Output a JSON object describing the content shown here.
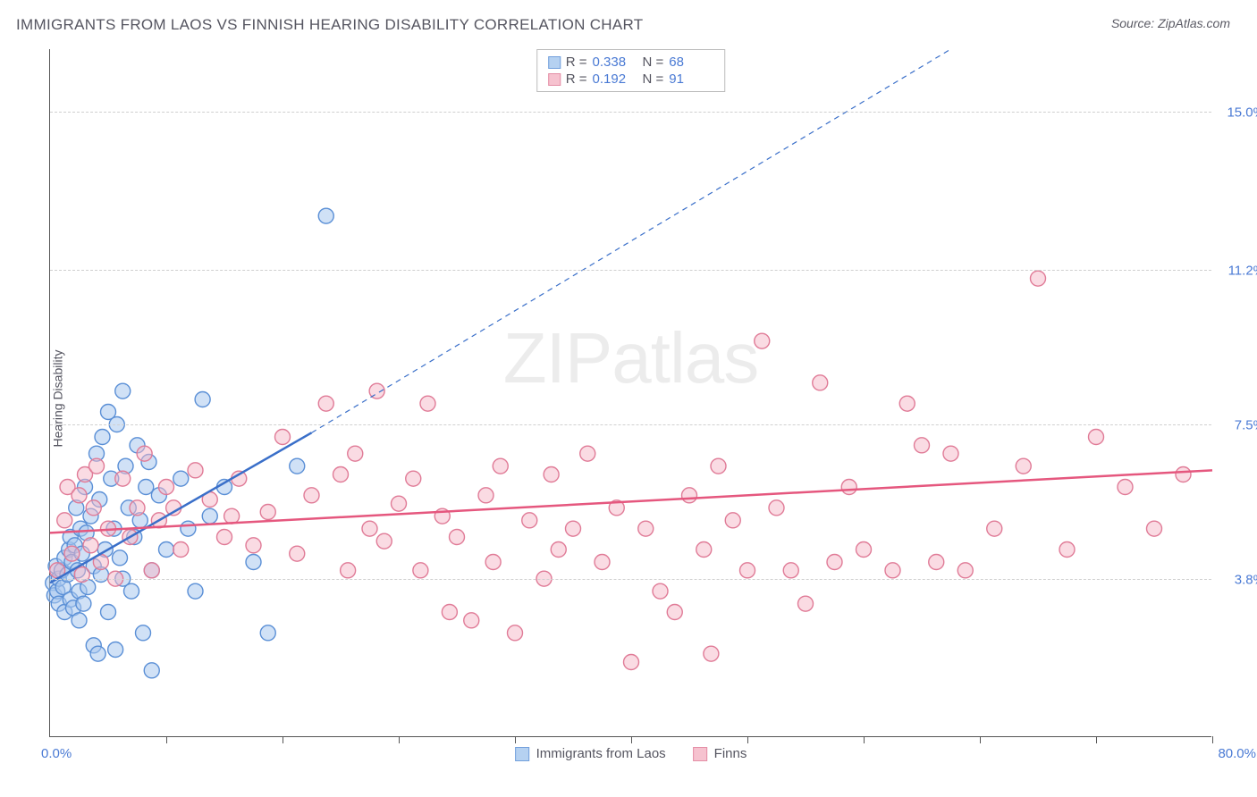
{
  "title": "IMMIGRANTS FROM LAOS VS FINNISH HEARING DISABILITY CORRELATION CHART",
  "source_label": "Source: ZipAtlas.com",
  "y_axis_label": "Hearing Disability",
  "watermark_bold": "ZIP",
  "watermark_light": "atlas",
  "chart": {
    "type": "scatter",
    "xlim": [
      0,
      80
    ],
    "ylim": [
      0,
      16.5
    ],
    "x_min_label": "0.0%",
    "x_max_label": "80.0%",
    "y_ticks": [
      {
        "v": 3.8,
        "label": "3.8%"
      },
      {
        "v": 7.5,
        "label": "7.5%"
      },
      {
        "v": 11.2,
        "label": "11.2%"
      },
      {
        "v": 15.0,
        "label": "15.0%"
      }
    ],
    "x_ticks": [
      8,
      16,
      24,
      32,
      40,
      48,
      56,
      64,
      72,
      80
    ],
    "marker_radius": 8.5,
    "marker_stroke_width": 1.4,
    "background_color": "#ffffff",
    "grid_color": "#d0d0d0",
    "series": [
      {
        "key": "laos",
        "label": "Immigrants from Laos",
        "fill": "#a9c9ef",
        "stroke": "#5a8fd6",
        "fill_opacity": 0.55,
        "trend": {
          "x1": 0,
          "y1": 3.7,
          "x2": 18,
          "y2": 7.3,
          "dash_x2": 62,
          "dash_y2": 16.5,
          "stroke": "#3a6fc9",
          "width": 2.5
        },
        "R": "0.338",
        "N": "68",
        "points": [
          [
            0.2,
            3.7
          ],
          [
            0.3,
            3.4
          ],
          [
            0.4,
            4.1
          ],
          [
            0.5,
            3.5
          ],
          [
            0.6,
            3.2
          ],
          [
            0.6,
            3.8
          ],
          [
            0.8,
            4.0
          ],
          [
            0.9,
            3.6
          ],
          [
            1.0,
            4.3
          ],
          [
            1.0,
            3.0
          ],
          [
            1.2,
            3.9
          ],
          [
            1.3,
            4.5
          ],
          [
            1.4,
            4.8
          ],
          [
            1.4,
            3.3
          ],
          [
            1.5,
            4.2
          ],
          [
            1.6,
            3.1
          ],
          [
            1.7,
            4.6
          ],
          [
            1.8,
            5.5
          ],
          [
            1.9,
            4.0
          ],
          [
            2.0,
            3.5
          ],
          [
            2.0,
            2.8
          ],
          [
            2.1,
            5.0
          ],
          [
            2.2,
            4.4
          ],
          [
            2.3,
            3.2
          ],
          [
            2.4,
            6.0
          ],
          [
            2.5,
            4.9
          ],
          [
            2.6,
            3.6
          ],
          [
            2.8,
            5.3
          ],
          [
            3.0,
            4.1
          ],
          [
            3.0,
            2.2
          ],
          [
            3.2,
            6.8
          ],
          [
            3.3,
            2.0
          ],
          [
            3.4,
            5.7
          ],
          [
            3.5,
            3.9
          ],
          [
            3.6,
            7.2
          ],
          [
            3.8,
            4.5
          ],
          [
            4.0,
            7.8
          ],
          [
            4.0,
            3.0
          ],
          [
            4.2,
            6.2
          ],
          [
            4.4,
            5.0
          ],
          [
            4.5,
            2.1
          ],
          [
            4.6,
            7.5
          ],
          [
            4.8,
            4.3
          ],
          [
            5.0,
            8.3
          ],
          [
            5.0,
            3.8
          ],
          [
            5.2,
            6.5
          ],
          [
            5.4,
            5.5
          ],
          [
            5.6,
            3.5
          ],
          [
            5.8,
            4.8
          ],
          [
            6.0,
            7.0
          ],
          [
            6.2,
            5.2
          ],
          [
            6.4,
            2.5
          ],
          [
            6.6,
            6.0
          ],
          [
            6.8,
            6.6
          ],
          [
            7.0,
            4.0
          ],
          [
            7.0,
            1.6
          ],
          [
            7.5,
            5.8
          ],
          [
            8.0,
            4.5
          ],
          [
            9.0,
            6.2
          ],
          [
            9.5,
            5.0
          ],
          [
            10.0,
            3.5
          ],
          [
            10.5,
            8.1
          ],
          [
            11.0,
            5.3
          ],
          [
            12.0,
            6.0
          ],
          [
            14.0,
            4.2
          ],
          [
            15.0,
            2.5
          ],
          [
            17.0,
            6.5
          ],
          [
            19.0,
            12.5
          ]
        ]
      },
      {
        "key": "finns",
        "label": "Finns",
        "fill": "#f5b8c7",
        "stroke": "#e07b97",
        "fill_opacity": 0.5,
        "trend": {
          "x1": 0,
          "y1": 4.9,
          "x2": 80,
          "y2": 6.4,
          "stroke": "#e5577e",
          "width": 2.5
        },
        "R": "0.192",
        "N": "91",
        "points": [
          [
            0.5,
            4.0
          ],
          [
            1.0,
            5.2
          ],
          [
            1.2,
            6.0
          ],
          [
            1.5,
            4.4
          ],
          [
            2.0,
            5.8
          ],
          [
            2.2,
            3.9
          ],
          [
            2.4,
            6.3
          ],
          [
            2.8,
            4.6
          ],
          [
            3.0,
            5.5
          ],
          [
            3.2,
            6.5
          ],
          [
            3.5,
            4.2
          ],
          [
            4.0,
            5.0
          ],
          [
            4.5,
            3.8
          ],
          [
            5.0,
            6.2
          ],
          [
            5.5,
            4.8
          ],
          [
            6.0,
            5.5
          ],
          [
            6.5,
            6.8
          ],
          [
            7.0,
            4.0
          ],
          [
            7.5,
            5.2
          ],
          [
            8.0,
            6.0
          ],
          [
            8.5,
            5.5
          ],
          [
            9.0,
            4.5
          ],
          [
            10.0,
            6.4
          ],
          [
            11.0,
            5.7
          ],
          [
            12.0,
            4.8
          ],
          [
            12.5,
            5.3
          ],
          [
            13.0,
            6.2
          ],
          [
            14.0,
            4.6
          ],
          [
            15.0,
            5.4
          ],
          [
            16.0,
            7.2
          ],
          [
            17.0,
            4.4
          ],
          [
            18.0,
            5.8
          ],
          [
            19.0,
            8.0
          ],
          [
            20.0,
            6.3
          ],
          [
            20.5,
            4.0
          ],
          [
            21.0,
            6.8
          ],
          [
            22.0,
            5.0
          ],
          [
            22.5,
            8.3
          ],
          [
            23.0,
            4.7
          ],
          [
            24.0,
            5.6
          ],
          [
            25.0,
            6.2
          ],
          [
            25.5,
            4.0
          ],
          [
            26.0,
            8.0
          ],
          [
            27.0,
            5.3
          ],
          [
            27.5,
            3.0
          ],
          [
            28.0,
            4.8
          ],
          [
            29.0,
            2.8
          ],
          [
            30.0,
            5.8
          ],
          [
            30.5,
            4.2
          ],
          [
            31.0,
            6.5
          ],
          [
            32.0,
            2.5
          ],
          [
            33.0,
            5.2
          ],
          [
            34.0,
            3.8
          ],
          [
            34.5,
            6.3
          ],
          [
            35.0,
            4.5
          ],
          [
            36.0,
            5.0
          ],
          [
            37.0,
            6.8
          ],
          [
            38.0,
            4.2
          ],
          [
            39.0,
            5.5
          ],
          [
            40.0,
            1.8
          ],
          [
            41.0,
            5.0
          ],
          [
            42.0,
            3.5
          ],
          [
            43.0,
            3.0
          ],
          [
            44.0,
            5.8
          ],
          [
            45.0,
            4.5
          ],
          [
            45.5,
            2.0
          ],
          [
            46.0,
            6.5
          ],
          [
            47.0,
            5.2
          ],
          [
            48.0,
            4.0
          ],
          [
            49.0,
            9.5
          ],
          [
            50.0,
            5.5
          ],
          [
            51.0,
            4.0
          ],
          [
            52.0,
            3.2
          ],
          [
            53.0,
            8.5
          ],
          [
            54.0,
            4.2
          ],
          [
            55.0,
            6.0
          ],
          [
            56.0,
            4.5
          ],
          [
            58.0,
            4.0
          ],
          [
            59.0,
            8.0
          ],
          [
            60.0,
            7.0
          ],
          [
            61.0,
            4.2
          ],
          [
            62.0,
            6.8
          ],
          [
            63.0,
            4.0
          ],
          [
            65.0,
            5.0
          ],
          [
            67.0,
            6.5
          ],
          [
            68.0,
            11.0
          ],
          [
            70.0,
            4.5
          ],
          [
            72.0,
            7.2
          ],
          [
            74.0,
            6.0
          ],
          [
            76.0,
            5.0
          ],
          [
            78.0,
            6.3
          ]
        ]
      }
    ],
    "legend_bottom": [
      {
        "swatch_fill": "#a9c9ef",
        "swatch_stroke": "#5a8fd6",
        "label": "Immigrants from Laos"
      },
      {
        "swatch_fill": "#f5b8c7",
        "swatch_stroke": "#e07b97",
        "label": "Finns"
      }
    ]
  }
}
